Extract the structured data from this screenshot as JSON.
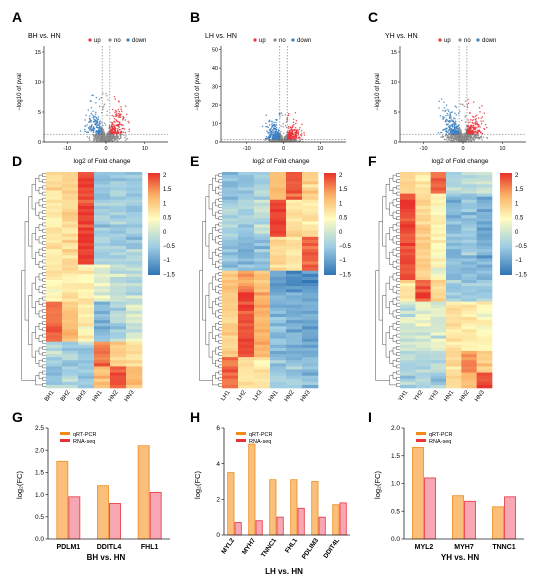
{
  "panel_letters": [
    "A",
    "B",
    "C",
    "D",
    "E",
    "F",
    "G",
    "H",
    "I"
  ],
  "legend_terms": {
    "up": "up",
    "no": "no",
    "down": "down"
  },
  "colors": {
    "up": "#e8323c",
    "no": "#8c8c8c",
    "down": "#3a7fc1",
    "bar_qrt_fill": "#fbbf7c",
    "bar_qrt_stroke": "#f08a1a",
    "bar_rna_fill": "#f7a6b4",
    "bar_rna_stroke": "#e8323c",
    "heat_low": "#2f75b5",
    "heat_mid": "#fffdbf",
    "heat_high": "#e8322b"
  },
  "chart_data": [
    {
      "id": "A",
      "type": "scatter",
      "title": "BH vs. HN",
      "xlabel": "log2 of Fold change",
      "ylabel": "−log10 of pval",
      "xlim": [
        -16,
        16
      ],
      "ylim": [
        0,
        16
      ],
      "xticks": [
        -10,
        0,
        10
      ],
      "yticks": [
        0,
        5,
        10,
        15
      ],
      "legend": [
        "up",
        "no",
        "down"
      ],
      "vlines": [
        -1,
        1
      ],
      "hline": 1.3
    },
    {
      "id": "B",
      "type": "scatter",
      "title": "LH vs. HN",
      "xlabel": "log2 of Fold change",
      "ylabel": "−log10 of pval",
      "xlim": [
        -17,
        17
      ],
      "ylim": [
        0,
        52
      ],
      "xticks": [
        -10,
        0,
        10
      ],
      "yticks": [
        0,
        10,
        20,
        30,
        40,
        50
      ],
      "legend": [
        "up",
        "no",
        "down"
      ],
      "vlines": [
        -1,
        1
      ],
      "hline": 1.3
    },
    {
      "id": "C",
      "type": "scatter",
      "title": "YH vs. HN",
      "xlabel": "log2 of Fold change",
      "ylabel": "−log10 of pval",
      "xlim": [
        -16,
        16
      ],
      "ylim": [
        0,
        16
      ],
      "xticks": [
        -10,
        0,
        10
      ],
      "yticks": [
        0,
        5,
        10,
        15
      ],
      "legend": [
        "up",
        "no",
        "down"
      ],
      "vlines": [
        -1,
        1
      ],
      "hline": 1.3
    },
    {
      "id": "D",
      "type": "heatmap",
      "columns": [
        "BH1",
        "BH2",
        "BH3",
        "HN1",
        "HN2",
        "HN3"
      ],
      "scale_ticks": [
        "2",
        "1.5",
        "1",
        "0.5",
        "0",
        "−0.5",
        "−1",
        "−1.5"
      ],
      "range": [
        -1.7,
        2
      ]
    },
    {
      "id": "E",
      "type": "heatmap",
      "columns": [
        "LH1",
        "LH2",
        "LH3",
        "HN1",
        "HN2",
        "HN3"
      ],
      "scale_ticks": [
        "2",
        "1.5",
        "1",
        "0.5",
        "0",
        "−0.5",
        "−1",
        "−1.5"
      ],
      "range": [
        -1.7,
        2
      ]
    },
    {
      "id": "F",
      "type": "heatmap",
      "columns": [
        "YH1",
        "YH2",
        "YH3",
        "HN1",
        "HN2",
        "HN3"
      ],
      "scale_ticks": [
        "2",
        "1.5",
        "1",
        "0.5",
        "0",
        "−0.5",
        "−1",
        "−1.5"
      ],
      "range": [
        -1.7,
        2
      ]
    },
    {
      "id": "G",
      "type": "bar",
      "xlabel": "BH vs. HN",
      "ylabel": "log₂(FC)",
      "categories": [
        "PDLM1",
        "DDITL4",
        "FHL1"
      ],
      "series": [
        {
          "name": "qRT-PCR",
          "values": [
            1.75,
            1.2,
            2.1
          ]
        },
        {
          "name": "RNA-seq",
          "values": [
            0.95,
            0.8,
            1.05
          ]
        }
      ],
      "ylim": [
        0,
        2.5
      ],
      "yticks": [
        "0.0",
        "0.5",
        "1.0",
        "1.5",
        "2.0",
        "2.5"
      ],
      "label_rotation": 0
    },
    {
      "id": "H",
      "type": "bar",
      "xlabel": "LH vs. HN",
      "ylabel": "log₂(FC)",
      "categories": [
        "MYL2",
        "MYH7",
        "TNNC1",
        "FHL1",
        "PDLIM3",
        "DDIT4L"
      ],
      "series": [
        {
          "name": "qRT-PCR",
          "values": [
            3.5,
            5.1,
            3.1,
            3.1,
            3.0,
            1.7
          ]
        },
        {
          "name": "RNA-seq",
          "values": [
            0.7,
            0.8,
            1.0,
            1.5,
            1.0,
            1.8
          ]
        }
      ],
      "ylim": [
        0,
        6
      ],
      "yticks": [
        "0",
        "2",
        "4",
        "6"
      ],
      "label_rotation": -55
    },
    {
      "id": "I",
      "type": "bar",
      "xlabel": "YH vs. HN",
      "ylabel": "log₂(FC)",
      "categories": [
        "MYL2",
        "MYH7",
        "TNNC1"
      ],
      "series": [
        {
          "name": "qRT-PCR",
          "values": [
            1.65,
            0.78,
            0.58
          ]
        },
        {
          "name": "RNA-seq",
          "values": [
            1.1,
            0.68,
            0.76
          ]
        }
      ],
      "ylim": [
        0,
        2.0
      ],
      "yticks": [
        "0.0",
        "0.5",
        "1.0",
        "1.5",
        "2.0"
      ],
      "label_rotation": 0
    }
  ]
}
